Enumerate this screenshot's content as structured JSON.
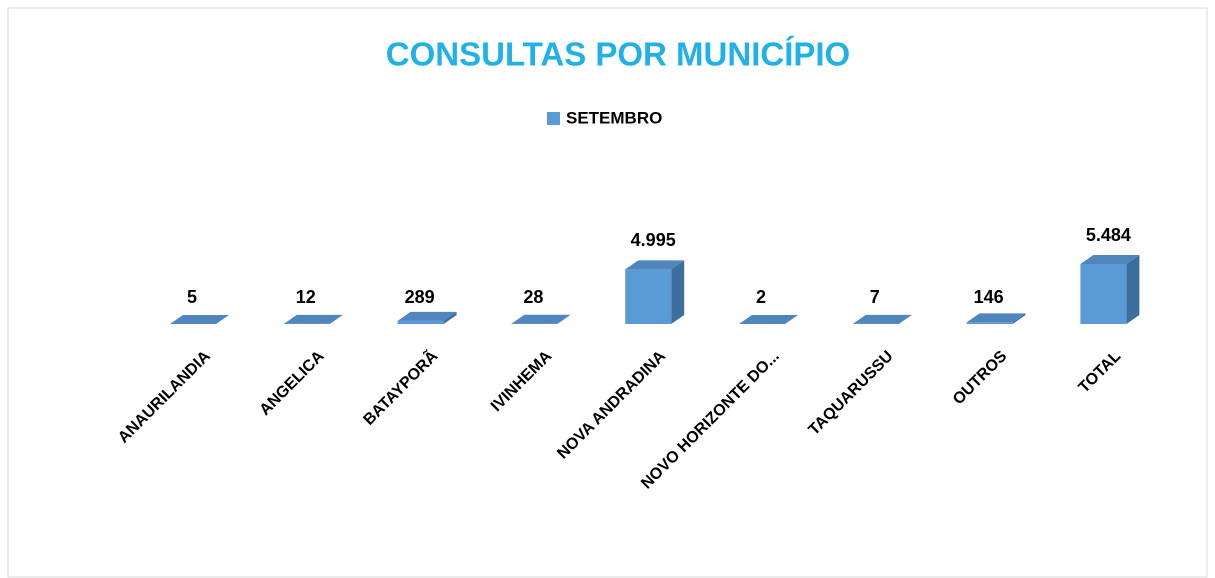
{
  "chart_data": {
    "type": "bar3d",
    "title": "CONSULTAS POR MUNICÍPIO",
    "categories": [
      "ANAURILANDIA",
      "ANGELICA",
      "BATAYPORÃ",
      "IVINHEMA",
      "NOVA ANDRADINA",
      "NOVO HORIZONTE DO...",
      "TAQUARUSSU",
      "OUTROS",
      "TOTAL"
    ],
    "series": [
      {
        "name": "SETEMBRO",
        "color": "#5b9bd5",
        "values": [
          5,
          12,
          289,
          28,
          4995,
          2,
          7,
          146,
          5484
        ],
        "value_labels": [
          "5",
          "12",
          "289",
          "28",
          "4.995",
          "2",
          "7",
          "146",
          "5.484"
        ]
      }
    ],
    "legend": "top",
    "grid": false
  }
}
